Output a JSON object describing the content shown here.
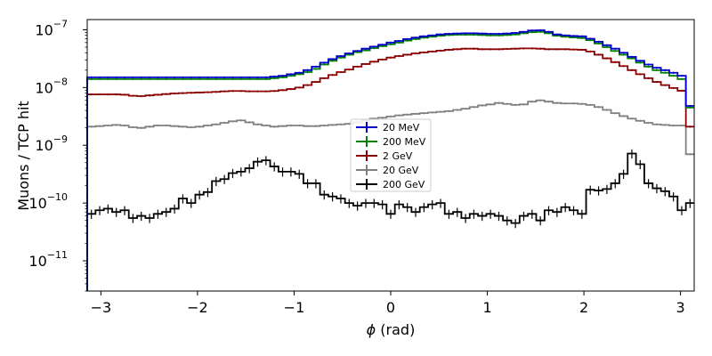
{
  "chart_data": {
    "type": "line",
    "title": "",
    "xlabel_symbol": "ϕ",
    "xlabel_unit": " (rad)",
    "ylabel": "Muons / TCP hit",
    "xlim": [
      -3.14159,
      3.14159
    ],
    "ylim": [
      3e-12,
      1.5e-07
    ],
    "yscale": "log",
    "grid": false,
    "legend_position": "center",
    "x_ticks": [
      {
        "value": -3,
        "label": "−3"
      },
      {
        "value": -2,
        "label": "−2"
      },
      {
        "value": -1,
        "label": "−1"
      },
      {
        "value": 0,
        "label": "0"
      },
      {
        "value": 1,
        "label": "1"
      },
      {
        "value": 2,
        "label": "2"
      },
      {
        "value": 3,
        "label": "3"
      }
    ],
    "y_ticks": [
      {
        "value": 1e-11,
        "mantissa": "10",
        "exponent": "−11"
      },
      {
        "value": 1e-10,
        "mantissa": "10",
        "exponent": "−10"
      },
      {
        "value": 1e-09,
        "mantissa": "10",
        "exponent": "−9"
      },
      {
        "value": 1e-08,
        "mantissa": "10",
        "exponent": "−8"
      },
      {
        "value": 1e-07,
        "mantissa": "10",
        "exponent": "−7"
      }
    ],
    "series": [
      {
        "name": "20 MeV",
        "color": "#0000cc",
        "values": [
          1.5e-08,
          1.5e-08,
          1.5e-08,
          1.5e-08,
          1.5e-08,
          1.5e-08,
          1.5e-08,
          1.5e-08,
          1.5e-08,
          1.5e-08,
          1.5e-08,
          1.5e-08,
          1.5e-08,
          1.5e-08,
          1.5e-08,
          1.5e-08,
          1.5e-08,
          1.5e-08,
          1.5e-08,
          1.5e-08,
          1.5e-08,
          1.5e-08,
          1.55e-08,
          1.6e-08,
          1.7e-08,
          1.8e-08,
          2e-08,
          2.3e-08,
          2.7e-08,
          3.1e-08,
          3.5e-08,
          3.9e-08,
          4.3e-08,
          4.7e-08,
          5.1e-08,
          5.5e-08,
          6e-08,
          6.4e-08,
          6.9e-08,
          7.3e-08,
          7.7e-08,
          8e-08,
          8.3e-08,
          8.5e-08,
          8.6e-08,
          8.7e-08,
          8.7e-08,
          8.6e-08,
          8.5e-08,
          8.5e-08,
          8.6e-08,
          8.8e-08,
          9.2e-08,
          9.7e-08,
          9.8e-08,
          9.2e-08,
          8.3e-08,
          8e-08,
          7.8e-08,
          7.7e-08,
          7e-08,
          6.2e-08,
          5.4e-08,
          4.7e-08,
          4e-08,
          3.4e-08,
          2.9e-08,
          2.5e-08,
          2.2e-08,
          2e-08,
          1.8e-08,
          1.6e-08,
          4.8e-09
        ]
      },
      {
        "name": "200 MeV",
        "color": "#008000",
        "values": [
          1.4e-08,
          1.4e-08,
          1.4e-08,
          1.4e-08,
          1.4e-08,
          1.4e-08,
          1.4e-08,
          1.4e-08,
          1.4e-08,
          1.4e-08,
          1.4e-08,
          1.4e-08,
          1.4e-08,
          1.4e-08,
          1.4e-08,
          1.4e-08,
          1.4e-08,
          1.4e-08,
          1.4e-08,
          1.4e-08,
          1.4e-08,
          1.4e-08,
          1.45e-08,
          1.5e-08,
          1.6e-08,
          1.7e-08,
          1.85e-08,
          2.1e-08,
          2.5e-08,
          2.9e-08,
          3.3e-08,
          3.7e-08,
          4.1e-08,
          4.4e-08,
          4.8e-08,
          5.2e-08,
          5.6e-08,
          6e-08,
          6.5e-08,
          6.9e-08,
          7.3e-08,
          7.6e-08,
          7.9e-08,
          8.1e-08,
          8.2e-08,
          8.2e-08,
          8.2e-08,
          8.1e-08,
          8e-08,
          8e-08,
          8.1e-08,
          8.3e-08,
          8.7e-08,
          9.1e-08,
          9.2e-08,
          8.7e-08,
          7.9e-08,
          7.6e-08,
          7.4e-08,
          7.2e-08,
          6.6e-08,
          5.8e-08,
          5e-08,
          4.3e-08,
          3.7e-08,
          3.2e-08,
          2.7e-08,
          2.3e-08,
          2e-08,
          1.8e-08,
          1.6e-08,
          1.4e-08,
          4.5e-09
        ]
      },
      {
        "name": "2 GeV",
        "color": "#8b0000",
        "values": [
          7.6e-09,
          7.6e-09,
          7.6e-09,
          7.6e-09,
          7.5e-09,
          7.2e-09,
          7.1e-09,
          7.3e-09,
          7.5e-09,
          7.7e-09,
          7.9e-09,
          8e-09,
          8.1e-09,
          8.2e-09,
          8.3e-09,
          8.4e-09,
          8.6e-09,
          8.7e-09,
          8.7e-09,
          8.6e-09,
          8.6e-09,
          8.6e-09,
          8.7e-09,
          9e-09,
          9.4e-09,
          1e-08,
          1.1e-08,
          1.25e-08,
          1.45e-08,
          1.65e-08,
          1.85e-08,
          2.05e-08,
          2.3e-08,
          2.55e-08,
          2.8e-08,
          3.05e-08,
          3.3e-08,
          3.5e-08,
          3.7e-08,
          3.9e-08,
          4.05e-08,
          4.2e-08,
          4.35e-08,
          4.5e-08,
          4.6e-08,
          4.7e-08,
          4.7e-08,
          4.6e-08,
          4.6e-08,
          4.6e-08,
          4.65e-08,
          4.7e-08,
          4.75e-08,
          4.75e-08,
          4.7e-08,
          4.6e-08,
          4.6e-08,
          4.6e-08,
          4.55e-08,
          4.5e-08,
          4.2e-08,
          3.7e-08,
          3.2e-08,
          2.75e-08,
          2.35e-08,
          2e-08,
          1.7e-08,
          1.45e-08,
          1.25e-08,
          1.1e-08,
          9.8e-09,
          8.8e-09,
          2.1e-09
        ]
      },
      {
        "name": "20 GeV",
        "color": "#808080",
        "values": [
          2.1e-09,
          2.15e-09,
          2.2e-09,
          2.25e-09,
          2.2e-09,
          2.05e-09,
          2e-09,
          2.1e-09,
          2.2e-09,
          2.2e-09,
          2.15e-09,
          2.1e-09,
          2.05e-09,
          2.1e-09,
          2.2e-09,
          2.3e-09,
          2.45e-09,
          2.6e-09,
          2.7e-09,
          2.5e-09,
          2.3e-09,
          2.2e-09,
          2.1e-09,
          2.15e-09,
          2.2e-09,
          2.2e-09,
          2.15e-09,
          2.15e-09,
          2.2e-09,
          2.25e-09,
          2.3e-09,
          2.35e-09,
          2.5e-09,
          2.7e-09,
          2.9e-09,
          3e-09,
          3.15e-09,
          3.3e-09,
          3.4e-09,
          3.5e-09,
          3.6e-09,
          3.7e-09,
          3.8e-09,
          3.9e-09,
          4.1e-09,
          4.3e-09,
          4.6e-09,
          4.9e-09,
          5.1e-09,
          5.4e-09,
          5.2e-09,
          5e-09,
          5.1e-09,
          5.7e-09,
          6e-09,
          5.7e-09,
          5.4e-09,
          5.3e-09,
          5.3e-09,
          5.2e-09,
          5e-09,
          4.6e-09,
          4.1e-09,
          3.6e-09,
          3.2e-09,
          2.9e-09,
          2.65e-09,
          2.45e-09,
          2.3e-09,
          2.25e-09,
          2.2e-09,
          2.2e-09,
          7e-10
        ]
      },
      {
        "name": "200 GeV",
        "color": "#000000",
        "values": [
          6.5e-11,
          7.5e-11,
          8e-11,
          7e-11,
          7.5e-11,
          5.5e-11,
          6e-11,
          5.5e-11,
          6.5e-11,
          7e-11,
          8e-11,
          1.2e-10,
          1e-10,
          1.4e-10,
          1.55e-10,
          2.4e-10,
          2.6e-10,
          3.3e-10,
          3.5e-10,
          4e-10,
          5.2e-10,
          5.5e-10,
          4.3e-10,
          3.5e-10,
          3.5e-10,
          3.2e-10,
          2.2e-10,
          2.2e-10,
          1.4e-10,
          1.3e-10,
          1.2e-10,
          1e-10,
          9e-11,
          1e-10,
          1e-10,
          9.5e-11,
          6.5e-11,
          9.5e-11,
          8.5e-11,
          7e-11,
          8.5e-11,
          9.5e-11,
          1e-10,
          6.5e-11,
          7e-11,
          5.5e-11,
          6.5e-11,
          6e-11,
          6.5e-11,
          6e-11,
          5e-11,
          4.5e-11,
          6e-11,
          6.5e-11,
          5e-11,
          7.5e-11,
          7e-11,
          8.5e-11,
          7.5e-11,
          6.5e-11,
          1.7e-10,
          1.65e-10,
          1.75e-10,
          2.2e-10,
          3.2e-10,
          7.2e-10,
          4.7e-10,
          2.2e-10,
          1.8e-10,
          1.6e-10,
          1.3e-10,
          7.5e-11,
          1e-10
        ]
      }
    ]
  }
}
